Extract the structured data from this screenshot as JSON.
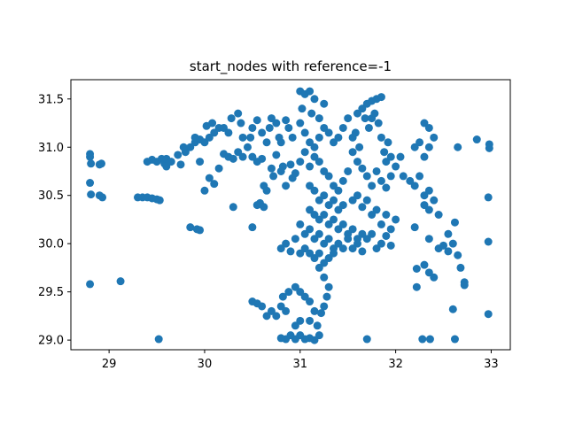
{
  "chart_data": {
    "type": "scatter",
    "title": "start_nodes with reference=-1",
    "xlabel": "",
    "ylabel": "",
    "xlim": [
      28.6,
      33.2
    ],
    "ylim": [
      28.9,
      31.7
    ],
    "xticks": [
      29,
      30,
      31,
      32,
      33
    ],
    "yticks": [
      29.0,
      29.5,
      30.0,
      30.5,
      31.0,
      31.5
    ],
    "xtick_labels": [
      "29",
      "30",
      "31",
      "32",
      "33"
    ],
    "ytick_labels": [
      "29.0",
      "29.5",
      "30.0",
      "30.5",
      "31.0",
      "31.5"
    ],
    "grid": false,
    "legend": "none",
    "marker_color": "#1f77b4",
    "points": [
      [
        28.8,
        30.93
      ],
      [
        28.8,
        30.9
      ],
      [
        28.81,
        30.83
      ],
      [
        28.8,
        30.63
      ],
      [
        28.81,
        30.51
      ],
      [
        28.92,
        30.83
      ],
      [
        28.9,
        30.82
      ],
      [
        28.9,
        30.5
      ],
      [
        28.93,
        30.48
      ],
      [
        28.8,
        29.58
      ],
      [
        29.12,
        29.61
      ],
      [
        29.52,
        29.01
      ],
      [
        29.3,
        30.48
      ],
      [
        29.35,
        30.48
      ],
      [
        29.4,
        30.48
      ],
      [
        29.45,
        30.47
      ],
      [
        29.5,
        30.46
      ],
      [
        29.53,
        30.45
      ],
      [
        29.4,
        30.85
      ],
      [
        29.45,
        30.87
      ],
      [
        29.5,
        30.85
      ],
      [
        29.55,
        30.88
      ],
      [
        29.58,
        30.83
      ],
      [
        29.6,
        30.8
      ],
      [
        29.6,
        30.88
      ],
      [
        29.65,
        30.85
      ],
      [
        29.72,
        30.92
      ],
      [
        29.75,
        30.82
      ],
      [
        29.8,
        30.95
      ],
      [
        29.85,
        31.0
      ],
      [
        29.9,
        31.05
      ],
      [
        29.95,
        31.08
      ],
      [
        30.0,
        31.05
      ],
      [
        30.05,
        31.1
      ],
      [
        30.1,
        31.15
      ],
      [
        30.15,
        31.2
      ],
      [
        30.08,
        31.25
      ],
      [
        30.02,
        31.22
      ],
      [
        29.9,
        31.1
      ],
      [
        29.78,
        31.0
      ],
      [
        29.95,
        30.85
      ],
      [
        30.0,
        30.55
      ],
      [
        30.05,
        30.68
      ],
      [
        30.1,
        30.62
      ],
      [
        30.15,
        30.78
      ],
      [
        30.2,
        30.93
      ],
      [
        30.25,
        30.9
      ],
      [
        30.3,
        30.88
      ],
      [
        30.35,
        30.95
      ],
      [
        30.4,
        30.9
      ],
      [
        30.3,
        30.38
      ],
      [
        29.85,
        30.17
      ],
      [
        29.92,
        30.15
      ],
      [
        29.95,
        30.14
      ],
      [
        30.2,
        31.2
      ],
      [
        30.25,
        31.15
      ],
      [
        30.28,
        31.3
      ],
      [
        30.35,
        31.35
      ],
      [
        30.38,
        31.25
      ],
      [
        30.4,
        31.1
      ],
      [
        30.45,
        31.0
      ],
      [
        30.48,
        31.1
      ],
      [
        30.5,
        31.2
      ],
      [
        30.55,
        31.28
      ],
      [
        30.6,
        31.15
      ],
      [
        30.65,
        31.05
      ],
      [
        30.68,
        31.2
      ],
      [
        30.7,
        31.3
      ],
      [
        30.75,
        31.25
      ],
      [
        30.78,
        31.1
      ],
      [
        30.8,
        31.05
      ],
      [
        30.85,
        31.28
      ],
      [
        30.88,
        31.2
      ],
      [
        30.92,
        31.1
      ],
      [
        30.5,
        30.9
      ],
      [
        30.55,
        30.85
      ],
      [
        30.6,
        30.88
      ],
      [
        30.62,
        30.6
      ],
      [
        30.65,
        30.55
      ],
      [
        30.7,
        30.78
      ],
      [
        30.72,
        30.7
      ],
      [
        30.75,
        30.92
      ],
      [
        30.8,
        30.75
      ],
      [
        30.82,
        30.8
      ],
      [
        30.85,
        30.6
      ],
      [
        30.9,
        30.82
      ],
      [
        30.92,
        30.68
      ],
      [
        30.95,
        30.73
      ],
      [
        30.55,
        30.4
      ],
      [
        30.58,
        30.42
      ],
      [
        30.62,
        30.38
      ],
      [
        30.5,
        30.17
      ],
      [
        31.0,
        31.58
      ],
      [
        31.05,
        31.55
      ],
      [
        31.1,
        31.58
      ],
      [
        31.15,
        31.5
      ],
      [
        31.02,
        31.4
      ],
      [
        31.12,
        31.35
      ],
      [
        31.2,
        31.3
      ],
      [
        31.25,
        31.45
      ],
      [
        31.0,
        31.25
      ],
      [
        31.05,
        31.15
      ],
      [
        31.1,
        31.05
      ],
      [
        31.15,
        31.0
      ],
      [
        31.2,
        31.1
      ],
      [
        31.25,
        31.2
      ],
      [
        31.3,
        31.15
      ],
      [
        31.35,
        31.05
      ],
      [
        31.4,
        31.1
      ],
      [
        31.05,
        30.95
      ],
      [
        31.0,
        30.85
      ],
      [
        31.1,
        30.8
      ],
      [
        31.15,
        30.9
      ],
      [
        31.2,
        30.85
      ],
      [
        31.25,
        30.75
      ],
      [
        31.45,
        31.2
      ],
      [
        31.5,
        31.3
      ],
      [
        31.55,
        31.1
      ],
      [
        31.6,
        31.35
      ],
      [
        31.62,
        31.0
      ],
      [
        31.65,
        31.4
      ],
      [
        31.7,
        31.45
      ],
      [
        31.72,
        31.2
      ],
      [
        31.75,
        31.3
      ],
      [
        31.78,
        31.35
      ],
      [
        31.8,
        31.5
      ],
      [
        31.82,
        31.25
      ],
      [
        31.85,
        31.1
      ],
      [
        31.88,
        30.95
      ],
      [
        31.9,
        30.85
      ],
      [
        31.92,
        31.05
      ],
      [
        31.95,
        30.9
      ],
      [
        32.0,
        30.8
      ],
      [
        32.05,
        30.9
      ],
      [
        32.08,
        30.7
      ],
      [
        31.85,
        31.52
      ],
      [
        31.75,
        31.48
      ],
      [
        31.68,
        31.3
      ],
      [
        31.58,
        31.15
      ],
      [
        31.55,
        30.95
      ],
      [
        31.6,
        30.85
      ],
      [
        31.65,
        30.78
      ],
      [
        31.7,
        30.7
      ],
      [
        31.75,
        30.6
      ],
      [
        31.8,
        30.75
      ],
      [
        31.85,
        30.65
      ],
      [
        31.9,
        30.58
      ],
      [
        31.95,
        30.7
      ],
      [
        31.5,
        30.75
      ],
      [
        31.45,
        30.65
      ],
      [
        31.4,
        30.55
      ],
      [
        31.35,
        30.6
      ],
      [
        31.3,
        30.7
      ],
      [
        31.55,
        30.45
      ],
      [
        31.6,
        30.5
      ],
      [
        31.65,
        30.38
      ],
      [
        31.7,
        30.45
      ],
      [
        31.75,
        30.3
      ],
      [
        31.8,
        30.35
      ],
      [
        31.85,
        30.2
      ],
      [
        31.9,
        30.3
      ],
      [
        31.95,
        30.15
      ],
      [
        32.0,
        30.25
      ],
      [
        31.1,
        30.6
      ],
      [
        31.15,
        30.55
      ],
      [
        31.2,
        30.45
      ],
      [
        31.25,
        30.5
      ],
      [
        31.3,
        30.4
      ],
      [
        31.35,
        30.45
      ],
      [
        31.4,
        30.35
      ],
      [
        31.45,
        30.4
      ],
      [
        31.1,
        30.35
      ],
      [
        31.15,
        30.3
      ],
      [
        31.2,
        30.25
      ],
      [
        31.25,
        30.3
      ],
      [
        31.3,
        30.2
      ],
      [
        31.35,
        30.25
      ],
      [
        31.4,
        30.15
      ],
      [
        31.45,
        30.2
      ],
      [
        31.5,
        30.1
      ],
      [
        31.55,
        30.15
      ],
      [
        31.6,
        30.05
      ],
      [
        31.65,
        30.1
      ],
      [
        31.0,
        30.2
      ],
      [
        31.05,
        30.1
      ],
      [
        31.1,
        30.15
      ],
      [
        31.15,
        30.05
      ],
      [
        31.2,
        30.1
      ],
      [
        31.25,
        30.0
      ],
      [
        31.3,
        30.05
      ],
      [
        31.35,
        29.95
      ],
      [
        31.4,
        30.0
      ],
      [
        31.45,
        29.95
      ],
      [
        31.5,
        30.05
      ],
      [
        31.55,
        29.95
      ],
      [
        31.6,
        30.0
      ],
      [
        31.65,
        29.92
      ],
      [
        31.7,
        30.05
      ],
      [
        31.75,
        30.1
      ],
      [
        31.8,
        29.95
      ],
      [
        31.85,
        30.0
      ],
      [
        31.9,
        30.08
      ],
      [
        31.95,
        29.98
      ],
      [
        30.85,
        30.0
      ],
      [
        30.8,
        29.95
      ],
      [
        30.9,
        29.92
      ],
      [
        30.95,
        30.05
      ],
      [
        31.0,
        29.9
      ],
      [
        31.05,
        29.95
      ],
      [
        31.1,
        29.9
      ],
      [
        31.15,
        29.85
      ],
      [
        31.2,
        29.9
      ],
      [
        31.25,
        29.8
      ],
      [
        31.3,
        29.85
      ],
      [
        31.35,
        29.9
      ],
      [
        31.2,
        29.75
      ],
      [
        31.25,
        29.65
      ],
      [
        31.3,
        29.55
      ],
      [
        31.28,
        29.45
      ],
      [
        31.25,
        29.35
      ],
      [
        31.22,
        29.28
      ],
      [
        31.18,
        29.15
      ],
      [
        31.2,
        29.05
      ],
      [
        31.15,
        29.0
      ],
      [
        31.1,
        29.02
      ],
      [
        31.05,
        29.01
      ],
      [
        31.0,
        29.05
      ],
      [
        30.95,
        29.01
      ],
      [
        30.9,
        29.05
      ],
      [
        30.85,
        29.01
      ],
      [
        30.8,
        29.02
      ],
      [
        30.85,
        29.3
      ],
      [
        30.8,
        29.35
      ],
      [
        30.75,
        29.25
      ],
      [
        30.7,
        29.3
      ],
      [
        30.65,
        29.25
      ],
      [
        30.6,
        29.35
      ],
      [
        30.55,
        29.38
      ],
      [
        30.5,
        29.4
      ],
      [
        30.82,
        29.45
      ],
      [
        30.88,
        29.5
      ],
      [
        30.95,
        29.55
      ],
      [
        31.0,
        29.5
      ],
      [
        31.05,
        29.45
      ],
      [
        31.1,
        29.4
      ],
      [
        31.15,
        29.3
      ],
      [
        31.1,
        29.2
      ],
      [
        31.0,
        29.2
      ],
      [
        30.95,
        29.15
      ],
      [
        32.2,
        30.6
      ],
      [
        32.25,
        30.7
      ],
      [
        32.3,
        30.5
      ],
      [
        32.35,
        30.55
      ],
      [
        32.3,
        30.4
      ],
      [
        32.35,
        30.35
      ],
      [
        32.4,
        30.45
      ],
      [
        32.45,
        30.3
      ],
      [
        32.3,
        30.9
      ],
      [
        32.35,
        31.0
      ],
      [
        32.4,
        31.1
      ],
      [
        32.3,
        31.25
      ],
      [
        32.35,
        31.2
      ],
      [
        32.2,
        31.0
      ],
      [
        32.25,
        31.05
      ],
      [
        32.15,
        30.65
      ],
      [
        32.2,
        30.17
      ],
      [
        32.35,
        30.05
      ],
      [
        32.45,
        29.95
      ],
      [
        32.5,
        29.98
      ],
      [
        32.55,
        29.92
      ],
      [
        32.6,
        30.0
      ],
      [
        32.55,
        30.1
      ],
      [
        32.62,
        30.22
      ],
      [
        32.65,
        29.88
      ],
      [
        32.68,
        29.75
      ],
      [
        32.72,
        29.6
      ],
      [
        32.72,
        29.57
      ],
      [
        32.6,
        29.32
      ],
      [
        32.3,
        29.78
      ],
      [
        32.35,
        29.7
      ],
      [
        32.4,
        29.65
      ],
      [
        32.22,
        29.74
      ],
      [
        32.22,
        29.55
      ],
      [
        32.65,
        31.0
      ],
      [
        32.85,
        31.08
      ],
      [
        32.98,
        31.03
      ],
      [
        32.98,
        30.99
      ],
      [
        32.97,
        30.48
      ],
      [
        32.97,
        30.02
      ],
      [
        32.97,
        29.27
      ],
      [
        31.7,
        29.01
      ],
      [
        32.28,
        29.01
      ],
      [
        32.36,
        29.01
      ],
      [
        32.62,
        29.01
      ]
    ]
  }
}
